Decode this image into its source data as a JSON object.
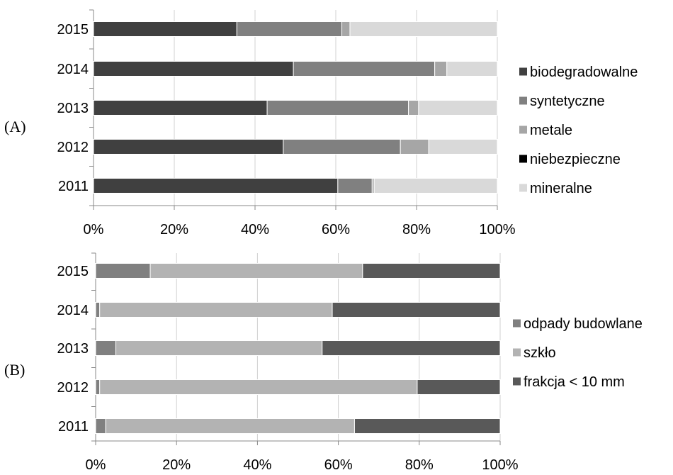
{
  "figure": {
    "panels_ylabel_note": ""
  },
  "chart_data": [
    {
      "type": "bar",
      "orientation": "horizontal",
      "stacked": "percent",
      "panel_label": "(A)",
      "categories": [
        "2011",
        "2012",
        "2013",
        "2014",
        "2015"
      ],
      "series": [
        {
          "name": "biodegradowalne",
          "color": "#404040",
          "values": [
            60.5,
            47.0,
            43.0,
            49.5,
            35.5
          ]
        },
        {
          "name": "syntetyczne",
          "color": "#808080",
          "values": [
            8.5,
            29.0,
            35.0,
            35.0,
            26.0
          ]
        },
        {
          "name": "metale",
          "color": "#a6a6a6",
          "values": [
            0.5,
            7.0,
            2.5,
            3.0,
            2.0
          ]
        },
        {
          "name": "niebezpieczne",
          "color": "#000000",
          "values": [
            0.0,
            0.0,
            0.0,
            0.0,
            0.0
          ]
        },
        {
          "name": "mineralne",
          "color": "#d9d9d9",
          "values": [
            30.5,
            17.0,
            19.5,
            12.5,
            36.5
          ]
        }
      ],
      "xlim": [
        0,
        100
      ],
      "xticks": [
        "0%",
        "20%",
        "40%",
        "60%",
        "80%",
        "100%"
      ],
      "grid": true,
      "legend_position": "right"
    },
    {
      "type": "bar",
      "orientation": "horizontal",
      "stacked": "percent",
      "panel_label": "(B)",
      "categories": [
        "2011",
        "2012",
        "2013",
        "2014",
        "2015"
      ],
      "series": [
        {
          "name": "odpady budowlane",
          "color": "#808080",
          "values": [
            2.5,
            1.0,
            5.0,
            1.0,
            13.5
          ]
        },
        {
          "name": "szkło",
          "color": "#b3b3b3",
          "values": [
            61.5,
            78.5,
            51.0,
            57.5,
            52.5
          ]
        },
        {
          "name": "frakcja < 10 mm",
          "color": "#595959",
          "values": [
            36.0,
            20.5,
            44.0,
            41.5,
            34.0
          ]
        }
      ],
      "xlim": [
        0,
        100
      ],
      "xticks": [
        "0%",
        "20%",
        "40%",
        "60%",
        "80%",
        "100%"
      ],
      "grid": true,
      "legend_position": "right"
    }
  ]
}
